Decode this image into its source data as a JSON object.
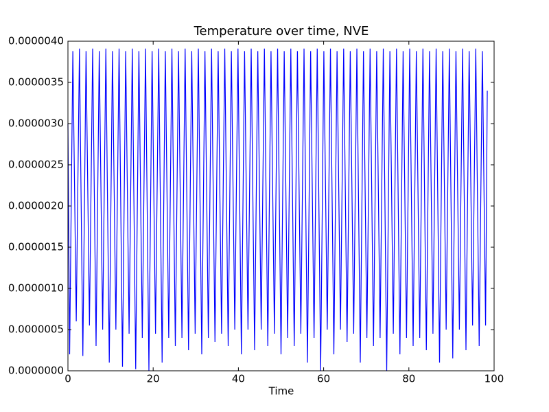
{
  "chart_data": {
    "type": "line",
    "title": "Temperature over time, NVE",
    "xlabel": "Time",
    "x": [
      0,
      0.4,
      1.15,
      1.95,
      2.7,
      3.5,
      4.25,
      5.05,
      5.8,
      6.6,
      7.35,
      8.15,
      8.9,
      9.7,
      10.45,
      11.25,
      12.0,
      12.8,
      13.55,
      14.35,
      15.1,
      15.9,
      16.65,
      17.45,
      18.2,
      19.0,
      19.75,
      20.55,
      21.3,
      22.1,
      22.85,
      23.65,
      24.4,
      25.2,
      25.95,
      26.75,
      27.5,
      28.3,
      29.05,
      29.85,
      30.6,
      31.4,
      32.15,
      32.95,
      33.7,
      34.5,
      35.25,
      36.05,
      36.8,
      37.6,
      38.35,
      39.15,
      39.9,
      40.7,
      41.45,
      42.25,
      43.0,
      43.8,
      44.55,
      45.35,
      46.1,
      46.9,
      47.65,
      48.45,
      49.2,
      50.0,
      50.75,
      51.55,
      52.3,
      53.1,
      53.85,
      54.65,
      55.4,
      56.2,
      56.95,
      57.75,
      58.5,
      59.3,
      60.05,
      60.85,
      61.6,
      62.4,
      63.15,
      63.95,
      64.7,
      65.5,
      66.25,
      67.05,
      67.8,
      68.6,
      69.35,
      70.15,
      70.9,
      71.7,
      72.45,
      73.25,
      74.0,
      74.8,
      75.55,
      76.35,
      77.1,
      77.9,
      78.65,
      79.45,
      80.2,
      81.0,
      81.75,
      82.55,
      83.3,
      84.1,
      84.85,
      85.65,
      86.4,
      87.2,
      87.95,
      88.75,
      89.5,
      90.3,
      91.05,
      91.85,
      92.6,
      93.4,
      94.15,
      94.95,
      95.7,
      96.5,
      97.25,
      98.0,
      98.4
    ],
    "series": [
      {
        "color": "#0000ff",
        "values": [
          3e-06,
          2e-07,
          3.88e-06,
          6e-07,
          3.91e-06,
          1.8e-07,
          3.88e-06,
          5.5e-07,
          3.91e-06,
          3e-07,
          3.88e-06,
          5e-07,
          3.91e-06,
          1e-07,
          3.88e-06,
          5e-07,
          3.91e-06,
          5e-08,
          3.88e-06,
          4.5e-07,
          3.91e-06,
          2e-08,
          3.88e-06,
          4e-07,
          3.91e-06,
          0,
          3.88e-06,
          4.5e-07,
          3.91e-06,
          1e-07,
          3.88e-06,
          4e-07,
          3.91e-06,
          3e-07,
          3.88e-06,
          4e-07,
          3.91e-06,
          2.5e-07,
          3.88e-06,
          4.5e-07,
          3.91e-06,
          2e-07,
          3.88e-06,
          4e-07,
          3.91e-06,
          3.5e-07,
          3.88e-06,
          4.5e-07,
          3.91e-06,
          3e-07,
          3.88e-06,
          5e-07,
          3.91e-06,
          2e-07,
          3.88e-06,
          5e-07,
          3.91e-06,
          2.5e-07,
          3.88e-06,
          5e-07,
          3.91e-06,
          3e-07,
          3.88e-06,
          4.5e-07,
          3.91e-06,
          2e-07,
          3.88e-06,
          4e-07,
          3.91e-06,
          3e-07,
          3.88e-06,
          4.5e-07,
          3.91e-06,
          1e-07,
          3.88e-06,
          4e-07,
          3.91e-06,
          0,
          3.88e-06,
          5e-07,
          3.91e-06,
          2e-07,
          3.88e-06,
          5e-07,
          3.91e-06,
          3.5e-07,
          3.88e-06,
          4.5e-07,
          3.91e-06,
          1e-07,
          3.88e-06,
          4e-07,
          3.91e-06,
          3e-07,
          3.88e-06,
          4e-07,
          3.91e-06,
          0,
          3.88e-06,
          4.5e-07,
          3.91e-06,
          2e-07,
          3.88e-06,
          4e-07,
          3.91e-06,
          3e-07,
          3.88e-06,
          4e-07,
          3.91e-06,
          2.5e-07,
          3.88e-06,
          4.5e-07,
          3.91e-06,
          1e-07,
          3.88e-06,
          5e-07,
          3.91e-06,
          1.5e-07,
          3.88e-06,
          5e-07,
          3.91e-06,
          2.5e-07,
          3.88e-06,
          5.5e-07,
          3.91e-06,
          3e-07,
          3.88e-06,
          5.5e-07,
          3.4e-06
        ]
      }
    ],
    "xlim": [
      0,
      100
    ],
    "xticks": [
      0,
      20,
      40,
      60,
      80,
      100
    ],
    "ylim": [
      0,
      4e-06
    ],
    "yticks": [
      {
        "value": 0,
        "label": "0.0000000"
      },
      {
        "value": 5e-07,
        "label": "0.0000005"
      },
      {
        "value": 1e-06,
        "label": "0.0000010"
      },
      {
        "value": 1.5e-06,
        "label": "0.0000015"
      },
      {
        "value": 2e-06,
        "label": "0.0000020"
      },
      {
        "value": 2.5e-06,
        "label": "0.0000025"
      },
      {
        "value": 3e-06,
        "label": "0.0000030"
      },
      {
        "value": 3.5e-06,
        "label": "0.0000035"
      },
      {
        "value": 4e-06,
        "label": "0.0000040"
      }
    ]
  }
}
